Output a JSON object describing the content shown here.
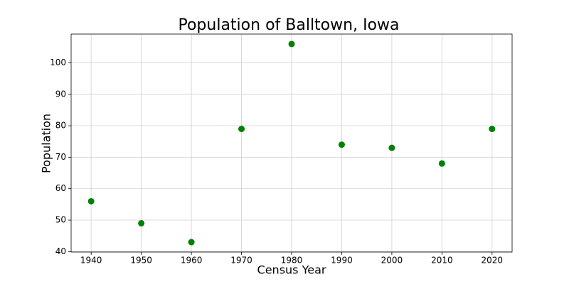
{
  "chart_data": {
    "type": "scatter",
    "title": "Population of Balltown, Iowa",
    "x_label": "Census Year",
    "y_label": "Population",
    "x": [
      1940,
      1950,
      1960,
      1970,
      1980,
      1990,
      2000,
      2010,
      2020
    ],
    "values": [
      56,
      49,
      43,
      79,
      106,
      74,
      73,
      68,
      79
    ],
    "color": "#008000",
    "xlim": [
      1936,
      2024
    ],
    "xticks": [
      1940,
      1950,
      1960,
      1970,
      1980,
      1990,
      2000,
      2010,
      2020
    ],
    "ylim": [
      39.85,
      109.15
    ],
    "yticks": [
      40,
      50,
      60,
      70,
      80,
      90,
      100
    ],
    "grid": true
  }
}
